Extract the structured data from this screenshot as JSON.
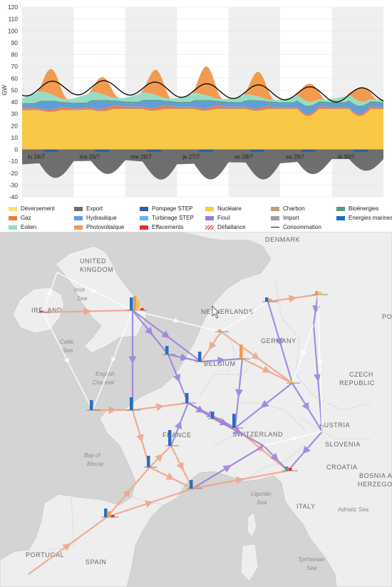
{
  "chart_data": {
    "type": "area",
    "ylabel": "GW",
    "ylim": [
      -40,
      120
    ],
    "yticks": [
      120,
      110,
      100,
      90,
      80,
      70,
      60,
      50,
      40,
      30,
      20,
      10,
      0,
      -10,
      -20,
      -30,
      -40
    ],
    "categories": [
      "lu 24/7",
      "ma 25/7",
      "me 26/7",
      "je 27/7",
      "ve 28/7",
      "sa 29/7",
      "di 30/7"
    ],
    "series": [
      {
        "name": "Nucléaire",
        "color": "#f8c846",
        "values": [
          33,
          33,
          34,
          34,
          34,
          34,
          34
        ]
      },
      {
        "name": "Charbon",
        "color": "#b8a07a",
        "values": [
          0.5,
          0.5,
          0.5,
          0.5,
          0.5,
          0.5,
          0.5
        ]
      },
      {
        "name": "Gaz",
        "color": "#f07a3c",
        "values": [
          2,
          1.5,
          2.5,
          2,
          2,
          1.5,
          1.5
        ]
      },
      {
        "name": "Fioul",
        "color": "#a07ad0",
        "values": [
          0.3,
          0.3,
          0.3,
          0.3,
          0.3,
          0.3,
          0.3
        ]
      },
      {
        "name": "Hydraulique",
        "color": "#5f9ed8",
        "values": [
          5,
          6,
          5,
          5,
          5,
          5,
          5
        ]
      },
      {
        "name": "Bioénergies",
        "color": "#5a9c80",
        "values": [
          1,
          1,
          1,
          1,
          1,
          1,
          1
        ]
      },
      {
        "name": "Eolien",
        "color": "#98dcc8",
        "values": [
          8,
          7,
          6,
          6,
          5,
          4,
          5
        ]
      },
      {
        "name": "Photovoltaïque",
        "color": "#f29b50",
        "values": [
          26,
          18,
          12,
          28,
          22,
          20,
          12
        ]
      },
      {
        "name": "Consommation",
        "color": "#111111",
        "values": [
          51,
          52,
          52,
          50,
          49,
          48,
          46
        ]
      },
      {
        "name": "Export",
        "color": "#6e6e6e",
        "values": [
          -28,
          -22,
          -20,
          -28,
          -24,
          -26,
          -18
        ]
      }
    ],
    "legend": [
      {
        "label": "Déversement",
        "color": "#fbe07a",
        "kind": "box"
      },
      {
        "label": "Export",
        "color": "#6e6e6e",
        "kind": "box"
      },
      {
        "label": "Pompage STEP",
        "color": "#2a5ea8",
        "kind": "box"
      },
      {
        "label": "Nucléaire",
        "color": "#f8c846",
        "kind": "box"
      },
      {
        "label": "Charbon",
        "color": "#b8a07a",
        "kind": "box"
      },
      {
        "label": "Bioénergies",
        "color": "#5a9c80",
        "kind": "box"
      },
      {
        "label": "Gaz",
        "color": "#f07a3c",
        "kind": "box"
      },
      {
        "label": "Hydraulique",
        "color": "#5f9ed8",
        "kind": "box"
      },
      {
        "label": "Turbinage STEP",
        "color": "#6ab0ea",
        "kind": "box"
      },
      {
        "label": "Fioul",
        "color": "#a07ad0",
        "kind": "box"
      },
      {
        "label": "Import",
        "color": "#9e9e9e",
        "kind": "box"
      },
      {
        "label": "Energies marines",
        "color": "#1a6ec8",
        "kind": "box"
      },
      {
        "label": "Eolien",
        "color": "#98dcc8",
        "kind": "box"
      },
      {
        "label": "Photovoltaïque",
        "color": "#f29b50",
        "kind": "box"
      },
      {
        "label": "Effacements",
        "color": "#e03030",
        "kind": "box"
      },
      {
        "label": "Défaillance",
        "color": "#e84a4a",
        "kind": "hatch"
      },
      {
        "label": "Consommation",
        "color": "#111111",
        "kind": "line"
      }
    ]
  },
  "map": {
    "countries": [
      "DENMARK",
      "UNITED",
      "KINGDOM",
      "IRELAND",
      "NETHERLANDS",
      "GERMANY",
      "BELGIUM",
      "FRANCE",
      "SWITZERLAND",
      "CZECH",
      "REPUBLIC",
      "AUSTRIA",
      "SLOVENIA",
      "CROATIA",
      "BOSNIA AND",
      "HERZEGOVINA",
      "ITALY",
      "SPAIN",
      "PORTUGAL",
      "PO"
    ],
    "seas": [
      "Irish",
      "Sea",
      "Celtic",
      "Sea",
      "English",
      "Channel",
      "Bay of",
      "Biscay",
      "Ligurian",
      "Sea",
      "Adriatic Sea",
      "Tyrrhenian",
      "Sea"
    ]
  }
}
